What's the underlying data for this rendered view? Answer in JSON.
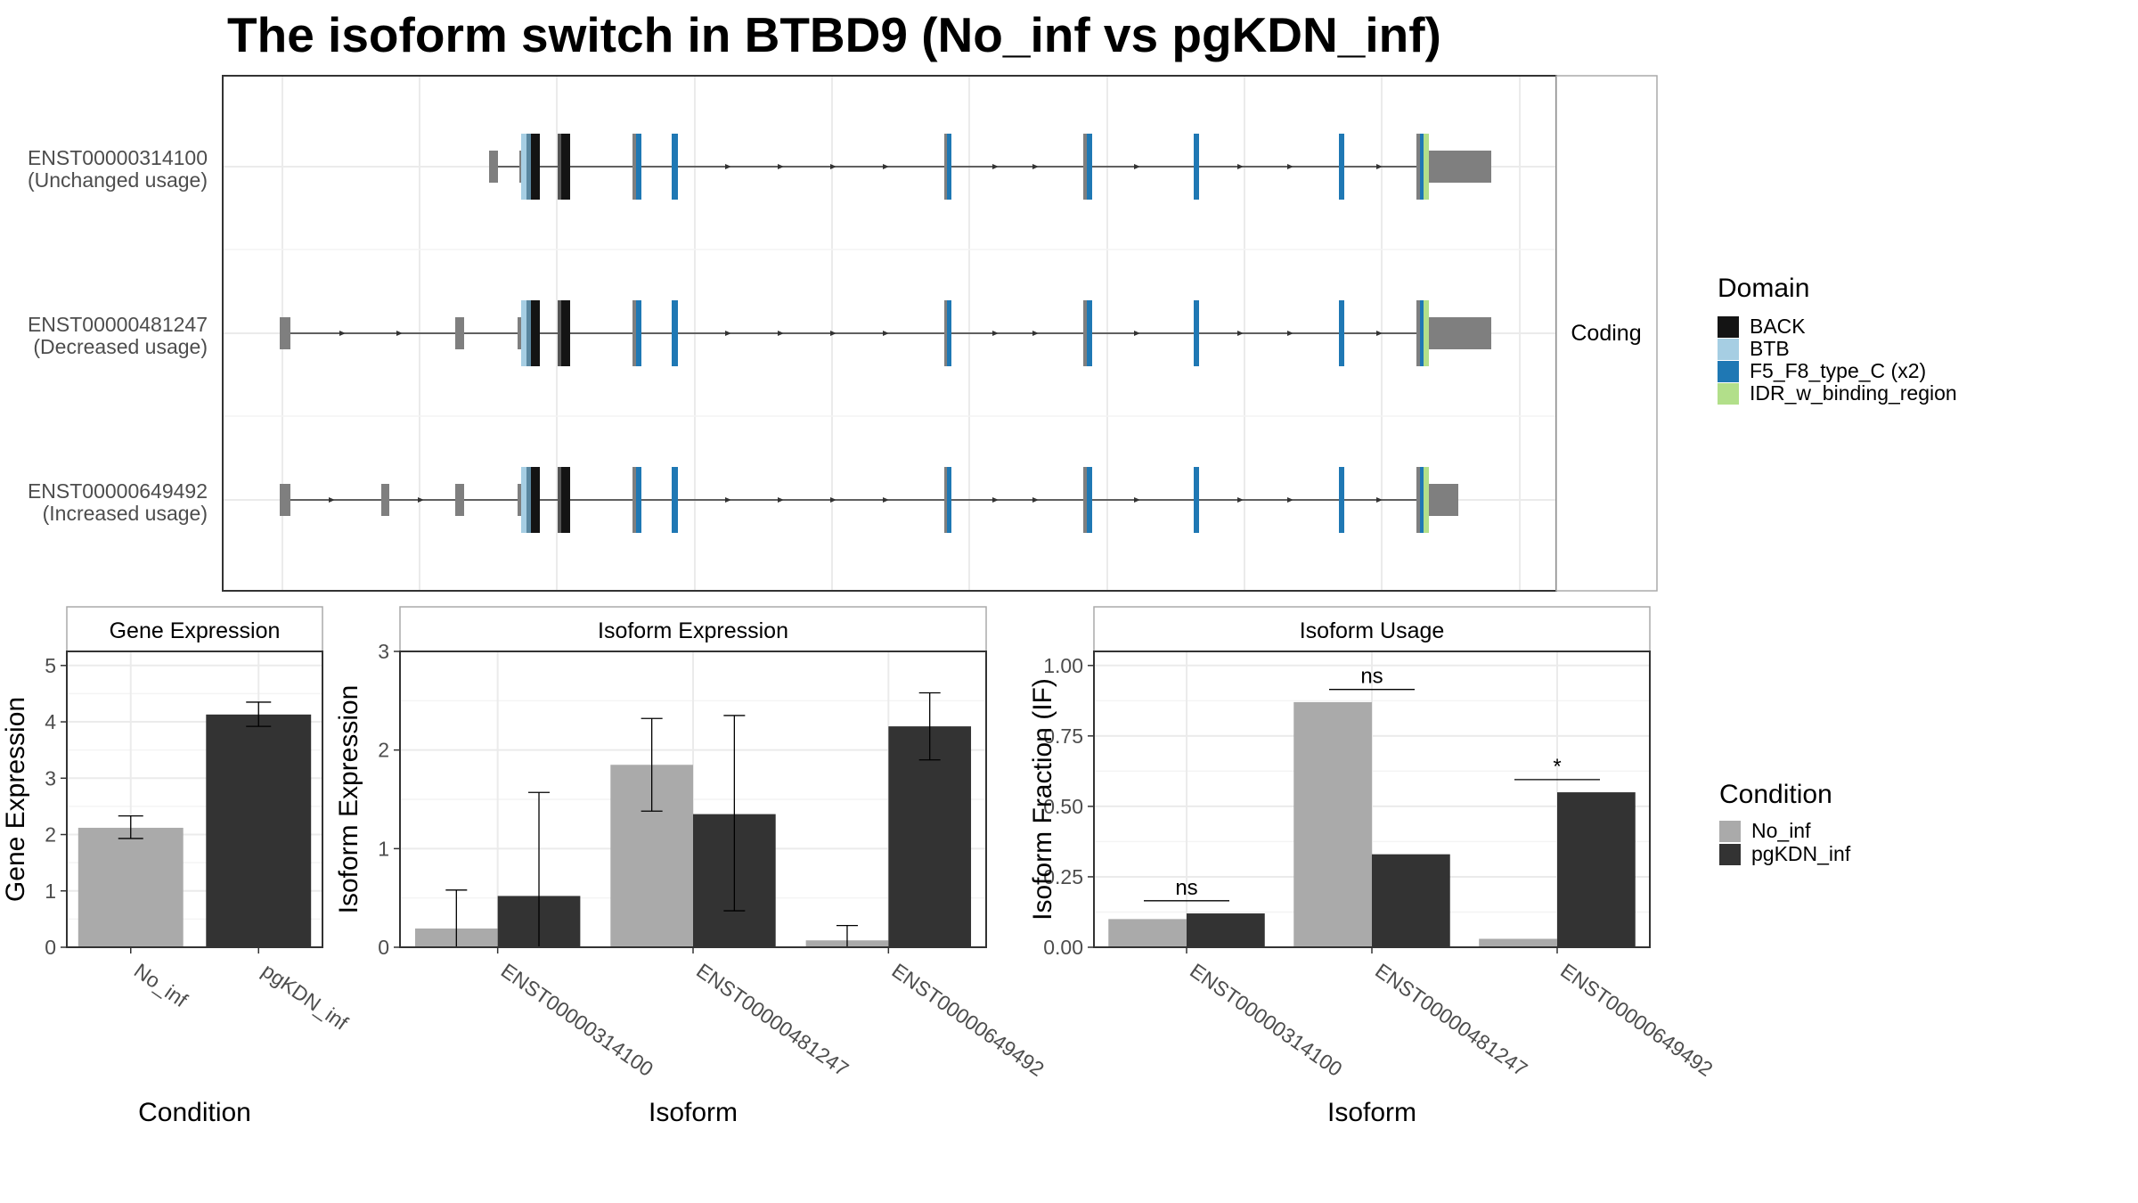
{
  "title": "The isoform switch in BTBD9 (No_inf vs pgKDN_inf)",
  "structure": {
    "strip_label": "Coding",
    "isoforms": [
      {
        "id": "ENST00000314100",
        "usage": "(Unchanged usage)"
      },
      {
        "id": "ENST00000481247",
        "usage": "(Decreased usage)"
      },
      {
        "id": "ENST00000649492",
        "usage": "(Increased usage)"
      }
    ]
  },
  "domain_legend": {
    "title": "Domain",
    "items": [
      {
        "label": "BACK",
        "color": "#141414"
      },
      {
        "label": "BTB",
        "color": "#a6cee3"
      },
      {
        "label": "F5_F8_type_C (x2)",
        "color": "#1f78b4"
      },
      {
        "label": "IDR_w_binding_region",
        "color": "#b2df8a"
      }
    ]
  },
  "condition_legend": {
    "title": "Condition",
    "items": [
      {
        "label": "No_inf",
        "color": "#aaaaaa"
      },
      {
        "label": "pgKDN_inf",
        "color": "#333333"
      }
    ]
  },
  "chart_data": [
    {
      "type": "bar",
      "panel": "Gene Expression",
      "categories": [
        "No_inf",
        "pgKDN_inf"
      ],
      "values": [
        2.12,
        4.13
      ],
      "err_low": [
        1.93,
        3.92
      ],
      "err_high": [
        2.33,
        4.35
      ],
      "xlabel": "Condition",
      "ylabel": "Gene Expression",
      "ylim": [
        0,
        5.25
      ],
      "yticks": [
        0,
        1,
        2,
        3,
        4,
        5
      ],
      "grid": true
    },
    {
      "type": "bar",
      "panel": "Isoform Expression",
      "categories": [
        "ENST00000314100",
        "ENST00000481247",
        "ENST00000649492"
      ],
      "series": [
        {
          "name": "No_inf",
          "values": [
            0.19,
            1.85,
            0.07
          ],
          "err_low": [
            0.0,
            1.38,
            0.0
          ],
          "err_high": [
            0.58,
            2.32,
            0.22
          ]
        },
        {
          "name": "pgKDN_inf",
          "values": [
            0.52,
            1.35,
            2.24
          ],
          "err_low": [
            0.0,
            0.37,
            1.9
          ],
          "err_high": [
            1.57,
            2.35,
            2.58
          ]
        }
      ],
      "xlabel": "Isoform",
      "ylabel": "Isoform Expression",
      "ylim": [
        0,
        3.0
      ],
      "yticks": [
        0,
        1,
        2,
        3
      ],
      "grid": true
    },
    {
      "type": "bar",
      "panel": "Isoform Usage",
      "categories": [
        "ENST00000314100",
        "ENST00000481247",
        "ENST00000649492"
      ],
      "series": [
        {
          "name": "No_inf",
          "values": [
            0.1,
            0.87,
            0.03
          ]
        },
        {
          "name": "pgKDN_inf",
          "values": [
            0.12,
            0.33,
            0.55
          ]
        }
      ],
      "significance": [
        "ns",
        "ns",
        "*"
      ],
      "xlabel": "Isoform",
      "ylabel": "Isoform Fraction (IF)",
      "ylim": [
        0,
        1.05
      ],
      "yticks": [
        "0.00",
        "0.25",
        "0.50",
        "0.75",
        "1.00"
      ],
      "grid": true
    }
  ]
}
